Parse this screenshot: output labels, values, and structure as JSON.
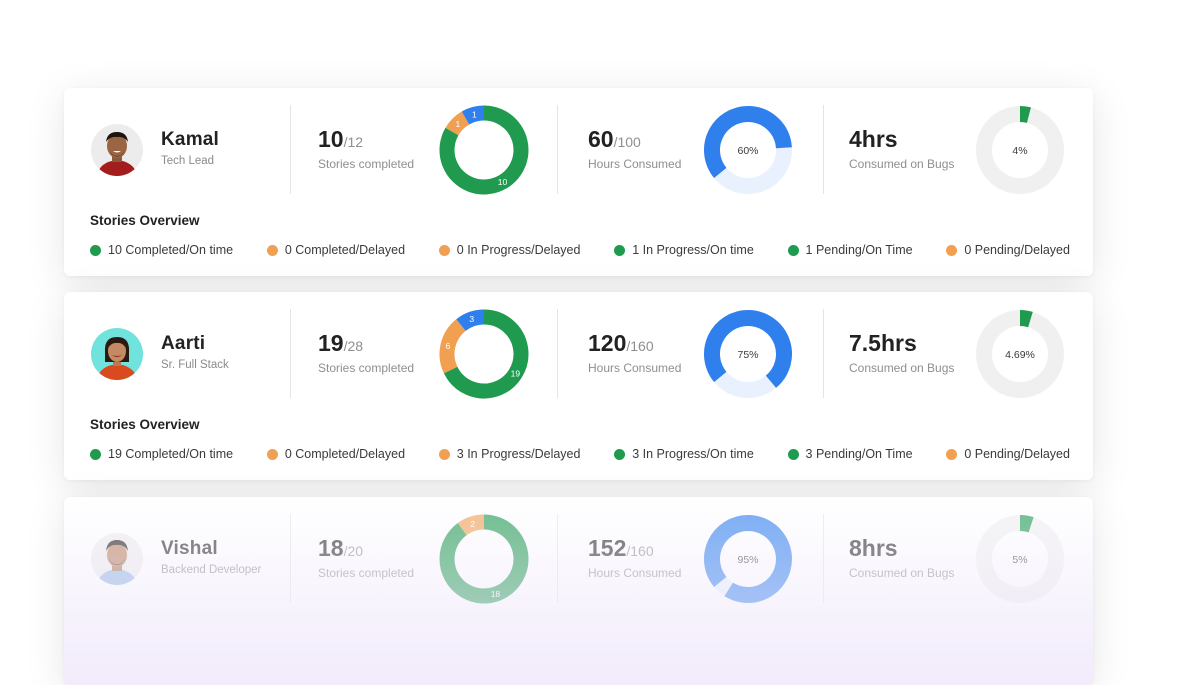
{
  "colors": {
    "green": "#1f9a4f",
    "orange": "#f0a050",
    "blue": "#2f80ed",
    "light_blue": "#e8f1fd",
    "grey": "#f0f0f0"
  },
  "members": [
    {
      "name": "Kamal",
      "role": "Tech Lead",
      "stories_completed": "10",
      "stories_total": "/12",
      "stories_label": "Stories completed",
      "stories_chart": [
        {
          "label": "10",
          "value": 10,
          "color": "#1f9a4f"
        },
        {
          "label": "1",
          "value": 1,
          "color": "#f0a050"
        },
        {
          "label": "1",
          "value": 1,
          "color": "#2f80ed"
        }
      ],
      "hours_consumed": "60",
      "hours_total": "/100",
      "hours_label": "Hours Consumed",
      "hours_percent": "60%",
      "hours_fraction": 0.6,
      "bugs_hours": "4hrs",
      "bugs_label": "Consumed on Bugs",
      "bugs_percent": "4%",
      "bugs_fraction": 0.04,
      "overview_title": "Stories Overview",
      "legend": [
        {
          "text": "10 Completed/On time",
          "color": "#1f9a4f"
        },
        {
          "text": "0 Completed/Delayed",
          "color": "#f0a050"
        },
        {
          "text": "0 In Progress/Delayed",
          "color": "#f0a050"
        },
        {
          "text": "1 In Progress/On time",
          "color": "#1f9a4f"
        },
        {
          "text": "1 Pending/On Time",
          "color": "#1f9a4f"
        },
        {
          "text": "0 Pending/Delayed",
          "color": "#f0a050"
        }
      ]
    },
    {
      "name": "Aarti",
      "role": "Sr. Full Stack",
      "stories_completed": "19",
      "stories_total": "/28",
      "stories_label": "Stories completed",
      "stories_chart": [
        {
          "label": "19",
          "value": 19,
          "color": "#1f9a4f"
        },
        {
          "label": "6",
          "value": 6,
          "color": "#f0a050"
        },
        {
          "label": "3",
          "value": 3,
          "color": "#2f80ed"
        }
      ],
      "hours_consumed": "120",
      "hours_total": "/160",
      "hours_label": "Hours Consumed",
      "hours_percent": "75%",
      "hours_fraction": 0.75,
      "bugs_hours": "7.5hrs",
      "bugs_label": "Consumed on Bugs",
      "bugs_percent": "4.69%",
      "bugs_fraction": 0.0469,
      "overview_title": "Stories Overview",
      "legend": [
        {
          "text": "19 Completed/On time",
          "color": "#1f9a4f"
        },
        {
          "text": "0 Completed/Delayed",
          "color": "#f0a050"
        },
        {
          "text": "3 In Progress/Delayed",
          "color": "#f0a050"
        },
        {
          "text": "3 In Progress/On time",
          "color": "#1f9a4f"
        },
        {
          "text": "3 Pending/On Time",
          "color": "#1f9a4f"
        },
        {
          "text": "0 Pending/Delayed",
          "color": "#f0a050"
        }
      ]
    },
    {
      "name": "Vishal",
      "role": "Backend Developer",
      "stories_completed": "18",
      "stories_total": "/20",
      "stories_label": "Stories completed",
      "stories_chart": [
        {
          "label": "18",
          "value": 18,
          "color": "#1f9a4f"
        },
        {
          "label": "2",
          "value": 2,
          "color": "#f0a050"
        }
      ],
      "hours_consumed": "152",
      "hours_total": "/160",
      "hours_label": "Hours Consumed",
      "hours_percent": "95%",
      "hours_fraction": 0.95,
      "bugs_hours": "8hrs",
      "bugs_label": "Consumed on Bugs",
      "bugs_percent": "5%",
      "bugs_fraction": 0.05,
      "overview_title": "",
      "legend": []
    }
  ]
}
